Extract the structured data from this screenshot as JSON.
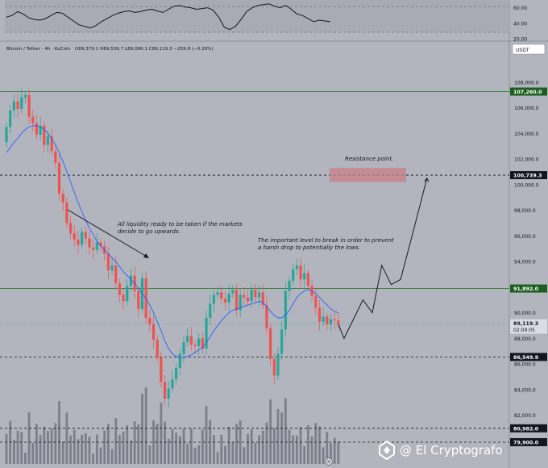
{
  "header": {
    "pair": "Bitcoin / Tether · 4h · KuCoin",
    "ohlc": "O89,379.1  H89,536.7  L89,086.1  C89,119.3  −259.8 (−0.29%)",
    "currency": "USDT"
  },
  "indicator": {
    "type": "line",
    "ticks": [
      "60.00",
      "40.00",
      "20.00"
    ],
    "tick_values": [
      60,
      40,
      20
    ],
    "ylim": [
      17,
      70
    ],
    "values": [
      48,
      50,
      55,
      52,
      47,
      45,
      44,
      46,
      50,
      54,
      53,
      48,
      43,
      38,
      36,
      34,
      37,
      42,
      46,
      50,
      53,
      55,
      56,
      54,
      55,
      57,
      58,
      56,
      54,
      58,
      62,
      63,
      61,
      60,
      58,
      59,
      60,
      57,
      48,
      35,
      32,
      36,
      45,
      55,
      60,
      63,
      64,
      65,
      62,
      60,
      63,
      58,
      52,
      50,
      46,
      42,
      44,
      43,
      42
    ]
  },
  "chart_data": {
    "type": "candlestick",
    "ylim": [
      78200,
      110000
    ],
    "y_ticks": [
      108000,
      106000,
      104000,
      102000,
      100000,
      98000,
      96000,
      94000,
      92000,
      90000,
      88000,
      86000,
      84000,
      82000
    ],
    "y_tick_labels": [
      "108,000.0",
      "106,000.0",
      "104,000.0",
      "102,000.0",
      "100,000.0",
      "98,000.0",
      "96,000.0",
      "94,000.0",
      "92,000.0",
      "90,000.0",
      "88,000.0",
      "86,000.0",
      "84,000.0",
      "82,000.0"
    ],
    "closes": [
      104500,
      105800,
      106500,
      105900,
      106800,
      107000,
      105300,
      104800,
      103900,
      104600,
      103100,
      103800,
      102600,
      101700,
      99300,
      98600,
      97000,
      96200,
      95700,
      95300,
      96300,
      95800,
      95100,
      94900,
      95500,
      95200,
      94600,
      93300,
      93700,
      92300,
      91400,
      90900,
      92100,
      92900,
      91700,
      90300,
      92700,
      89600,
      89100,
      87900,
      86500,
      84600,
      83300,
      84100,
      84800,
      85700,
      86800,
      87700,
      88200,
      87500,
      87400,
      88000,
      87200,
      89600,
      90700,
      91400,
      91600,
      91100,
      90800,
      91500,
      91800,
      90200,
      91400,
      91200,
      90900,
      91800,
      91200,
      91600,
      90600,
      88800,
      86400,
      85100,
      86800,
      88700,
      91700,
      92500,
      93400,
      93700,
      92600,
      93100,
      92100,
      91300,
      90400,
      89300,
      89700,
      89100,
      89500,
      89400,
      89119
    ],
    "ma": [
      102500,
      102900,
      103300,
      103600,
      104000,
      104300,
      104500,
      104600,
      104600,
      104500,
      104300,
      104000,
      103600,
      103100,
      102500,
      101800,
      101000,
      100200,
      99400,
      98600,
      97900,
      97200,
      96600,
      96100,
      95600,
      95200,
      94900,
      94600,
      94300,
      94000,
      93600,
      93200,
      92900,
      92600,
      92300,
      91900,
      91500,
      91100,
      90600,
      90000,
      89300,
      88600,
      87800,
      87200,
      86800,
      86600,
      86500,
      86500,
      86600,
      86700,
      86900,
      87100,
      87300,
      87700,
      88100,
      88600,
      89000,
      89400,
      89700,
      90000,
      90200,
      90300,
      90400,
      90500,
      90600,
      90700,
      90800,
      90900,
      90800,
      90500,
      90100,
      89800,
      89600,
      89600,
      89800,
      90200,
      90700,
      91200,
      91500,
      91700,
      91800,
      91700,
      91500,
      91200,
      90900,
      90600,
      90300,
      90100,
      90000
    ],
    "levels": [
      {
        "value": 107260.0,
        "label": "107,260.0",
        "style": "solid",
        "color": "#2e7d32"
      },
      {
        "value": 100739.3,
        "label": "100,739.3",
        "style": "dashed",
        "color": "#131722"
      },
      {
        "value": 91892.0,
        "label": "91,892.0",
        "style": "solid",
        "color": "#2e7d32"
      },
      {
        "value": 86549.9,
        "label": "86,549.9",
        "style": "dashed",
        "color": "#131722"
      },
      {
        "value": 80982.0,
        "label": "80,982.0",
        "style": "dashed",
        "color": "#131722"
      },
      {
        "value": 79900.0,
        "label": "79,900.0",
        "style": "dashed",
        "color": "#131722"
      }
    ],
    "last_price": {
      "value": 89119.3,
      "label": "89,119.3",
      "countdown": "02:09:05"
    },
    "resistance_zone": {
      "low": 100200,
      "high": 101300
    },
    "projection": [
      [
        89119,
        0
      ],
      [
        88000,
        1.5
      ],
      [
        89500,
        4
      ],
      [
        91000,
        6.5
      ],
      [
        90000,
        9
      ],
      [
        93700,
        11.5
      ],
      [
        92200,
        14
      ],
      [
        92600,
        16.5
      ],
      [
        96500,
        20
      ],
      [
        100500,
        23.5
      ]
    ],
    "annotations": [
      {
        "text": "Resistance point."
      },
      {
        "text_lines": [
          "All liquidity ready to be taken if the markets",
          "decide to go upwards."
        ]
      },
      {
        "text_lines": [
          "The important level to break in order to prevent",
          "a harsh drop to potentially the lows."
        ]
      }
    ],
    "colors": {
      "up": "#26a69a",
      "down": "#ef5350",
      "ma": "#2962ff",
      "zone": "#c97f86"
    }
  },
  "watermark": "@ El Cryptografo"
}
